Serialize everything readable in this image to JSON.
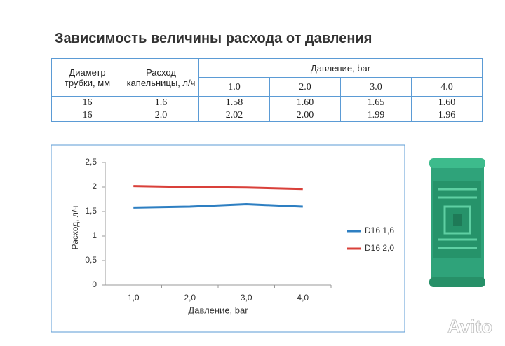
{
  "header": {
    "title": "Зависимость величины расхода от давления"
  },
  "table": {
    "header": [
      "Диаметр трубки, мм",
      "Расход капельницы, л/ч",
      "Давление, bar"
    ],
    "pressures": [
      "1.0",
      "2.0",
      "3.0",
      "4.0"
    ],
    "rows": [
      [
        "16",
        "1.6",
        "1.58",
        "1.60",
        "1.65",
        "1.60"
      ],
      [
        "16",
        "2.0",
        "2.02",
        "2.00",
        "1.99",
        "1.96"
      ]
    ]
  },
  "chart_data": {
    "type": "line",
    "x_label": "Давление, bar",
    "y_label": "Расход, л/ч",
    "categories": [
      "1,0",
      "2,0",
      "3,0",
      "4,0"
    ],
    "series": [
      {
        "name": "D16 1,6",
        "color": "#2e7fc2",
        "values": [
          1.58,
          1.6,
          1.65,
          1.6
        ]
      },
      {
        "name": "D16 2,0",
        "color": "#d9403a",
        "values": [
          2.02,
          2.0,
          1.99,
          1.96
        ]
      }
    ],
    "ylim": [
      0,
      2.5
    ],
    "yticks": [
      0,
      {
        "value": 0.5,
        "label": "0,5"
      },
      1,
      {
        "value": 1.5,
        "label": "1,5"
      },
      2,
      {
        "value": 2.5,
        "label": "2,5"
      }
    ],
    "grid": false,
    "legend": "right"
  },
  "watermark": "Avito"
}
